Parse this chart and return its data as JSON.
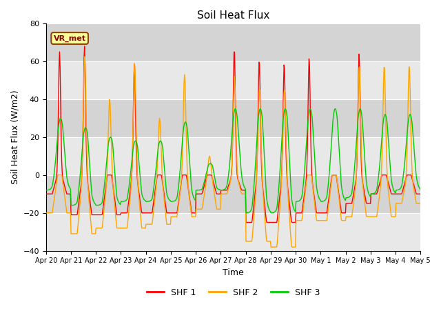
{
  "title": "Soil Heat Flux",
  "xlabel": "Time",
  "ylabel": "Soil Heat Flux (W/m2)",
  "ylim": [
    -40,
    80
  ],
  "xlim": [
    0,
    15
  ],
  "xtick_labels": [
    "Apr 20",
    "Apr 21",
    "Apr 22",
    "Apr 23",
    "Apr 24",
    "Apr 25",
    "Apr 26",
    "Apr 27",
    "Apr 28",
    "Apr 29",
    "Apr 30",
    "May 1",
    "May 2",
    "May 3",
    "May 4",
    "May 5"
  ],
  "ytick_values": [
    -40,
    -20,
    0,
    20,
    40,
    60,
    80
  ],
  "legend_labels": [
    "SHF 1",
    "SHF 2",
    "SHF 3"
  ],
  "shf1_color": "#ff0000",
  "shf2_color": "#ffa500",
  "shf3_color": "#00cc00",
  "bg_color": "#dcdcdc",
  "annotation_text": "VR_met",
  "shf1_peaks": [
    65,
    68,
    0,
    59,
    0,
    0,
    0,
    67,
    61,
    59,
    62,
    0,
    64,
    0,
    0
  ],
  "shf1_troughs": [
    -10,
    -21,
    -21,
    -20,
    -20,
    -20,
    -10,
    -8,
    -25,
    -25,
    -20,
    -20,
    -15,
    -10,
    -10
  ],
  "shf2_peaks": [
    0,
    63,
    40,
    59,
    30,
    53,
    10,
    52,
    45,
    45,
    0,
    0,
    58,
    58,
    58
  ],
  "shf2_troughs": [
    -20,
    -31,
    -28,
    -28,
    -26,
    -22,
    -18,
    -10,
    -35,
    -38,
    -24,
    -24,
    -22,
    -22,
    -15
  ],
  "shf3_peaks": [
    30,
    25,
    20,
    18,
    18,
    28,
    6,
    35,
    35,
    35,
    35,
    35,
    35,
    32,
    32
  ],
  "shf3_troughs": [
    -8,
    -16,
    -16,
    -14,
    -14,
    -14,
    -8,
    -8,
    -20,
    -20,
    -14,
    -14,
    -12,
    -10,
    -8
  ]
}
